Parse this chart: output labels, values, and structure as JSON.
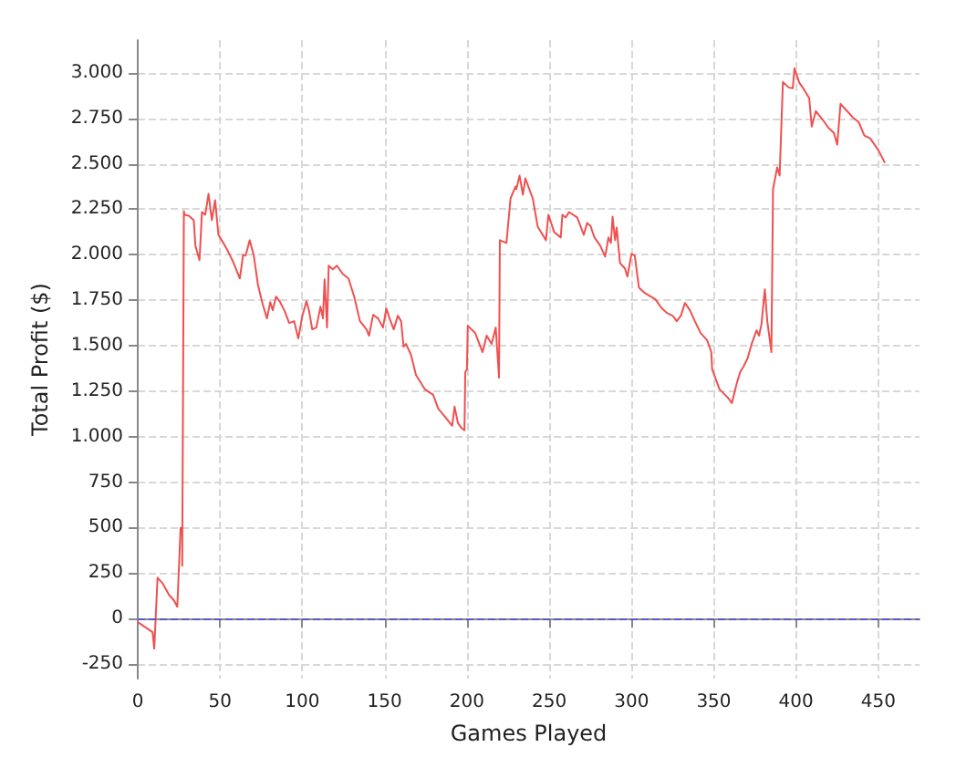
{
  "chart_data": {
    "type": "line",
    "xlabel": "Games Played",
    "ylabel": "Total Profit ($)",
    "xlim": [
      0,
      475
    ],
    "xticks": [
      0,
      50,
      {
        "value": 100,
        "label": "100"
      },
      150,
      200,
      250,
      300,
      350,
      400,
      450
    ],
    "ylim": [
      -330,
      3180
    ],
    "yticks": [
      -250,
      0,
      250,
      500,
      750,
      {
        "value": 1000,
        "label": "1.000"
      },
      {
        "value": 1250,
        "label": "1.250"
      },
      {
        "value": 1500,
        "label": "1.500"
      },
      {
        "value": 1750,
        "label": "1.750"
      },
      {
        "value": 2000,
        "label": "2.000"
      },
      {
        "value": 2250,
        "label": "2.250"
      },
      {
        "value": 2500,
        "label": "2.500"
      },
      {
        "value": 2750,
        "label": "2.750"
      },
      {
        "value": 3000,
        "label": "3.000"
      }
    ],
    "grid": true,
    "marker": "none",
    "line_style": "solid",
    "ref_lines": [
      {
        "axis": "y",
        "value": 0,
        "color": "#5555cc",
        "line_style": "dashed"
      }
    ],
    "series": [
      {
        "color": "#f05050",
        "x": [
          0,
          5,
          9,
          10,
          12,
          15,
          19,
          22,
          24,
          26,
          27,
          27,
          28,
          28.4,
          31,
          34,
          35,
          37.5,
          39,
          41,
          43,
          45,
          47,
          49,
          51,
          54.5,
          58,
          62,
          64,
          65.5,
          68,
          70.5,
          73,
          76,
          78.5,
          80.5,
          82,
          84,
          86.5,
          89,
          92,
          95,
          97.5,
          100,
          102.5,
          104,
          106,
          108.5,
          111,
          112.5,
          113.5,
          115,
          116,
          118.5,
          121,
          124.5,
          128,
          131.5,
          135,
          139,
          140.5,
          143,
          146,
          149,
          151,
          153,
          155.5,
          158,
          160,
          161.5,
          163,
          166,
          169,
          174.5,
          179.5,
          182.5,
          188,
          191,
          192.5,
          194.5,
          197,
          198.5,
          199,
          200,
          200.5,
          205,
          209.5,
          212,
          215,
          217.5,
          219.5,
          220,
          224,
          226.5,
          229.5,
          230,
          232,
          234,
          235.5,
          240,
          243,
          248,
          249.5,
          253,
          257,
          258,
          260,
          262,
          267,
          271,
          273,
          275,
          277.5,
          281,
          284,
          286,
          287.5,
          288.5,
          290,
          291,
          293,
          296,
          297.5,
          300,
          302,
          304.5,
          308,
          314.5,
          318,
          321.5,
          325,
          327.5,
          330,
          332.5,
          335.5,
          338.5,
          342,
          346,
          348.5,
          349,
          353.5,
          358.5,
          361,
          364,
          366,
          368,
          370.5,
          373,
          376,
          377.5,
          379,
          381,
          382.5,
          385,
          386,
          388.5,
          390,
          392,
          395.5,
          398,
          399,
          402,
          404,
          408,
          409.5,
          412,
          416,
          419.5,
          423,
          425,
          427,
          431,
          434.5,
          438,
          441.5,
          445,
          450,
          454
        ],
        "values": [
          -20,
          -50,
          -75,
          -165,
          225,
          195,
          130,
          100,
          65,
          500,
          460,
          290,
          2240,
          2220,
          2215,
          2190,
          2050,
          1970,
          2235,
          2220,
          2335,
          2190,
          2300,
          2110,
          2080,
          2025,
          1960,
          1870,
          2000,
          1995,
          2080,
          1995,
          1835,
          1725,
          1650,
          1740,
          1695,
          1770,
          1740,
          1695,
          1625,
          1635,
          1540,
          1665,
          1745,
          1695,
          1590,
          1600,
          1715,
          1650,
          1865,
          1600,
          1940,
          1920,
          1940,
          1895,
          1870,
          1770,
          1635,
          1590,
          1555,
          1670,
          1650,
          1600,
          1705,
          1650,
          1590,
          1665,
          1635,
          1495,
          1510,
          1450,
          1340,
          1260,
          1230,
          1155,
          1095,
          1060,
          1165,
          1075,
          1045,
          1035,
          1355,
          1370,
          1610,
          1570,
          1465,
          1555,
          1510,
          1600,
          1325,
          2080,
          2065,
          2310,
          2375,
          2360,
          2435,
          2330,
          2420,
          2310,
          2155,
          2080,
          2220,
          2125,
          2095,
          2220,
          2205,
          2235,
          2205,
          2110,
          2175,
          2160,
          2095,
          2050,
          1990,
          2095,
          2065,
          2210,
          2080,
          2150,
          1955,
          1925,
          1880,
          2005,
          1995,
          1820,
          1790,
          1755,
          1710,
          1680,
          1665,
          1635,
          1665,
          1735,
          1695,
          1635,
          1570,
          1530,
          1465,
          1370,
          1260,
          1215,
          1185,
          1295,
          1355,
          1385,
          1430,
          1510,
          1585,
          1555,
          1620,
          1810,
          1635,
          1465,
          2360,
          2480,
          2435,
          2950,
          2920,
          2915,
          3025,
          2945,
          2920,
          2860,
          2705,
          2790,
          2745,
          2700,
          2670,
          2605,
          2830,
          2790,
          2755,
          2730,
          2655,
          2640,
          2575,
          2505
        ]
      }
    ]
  }
}
